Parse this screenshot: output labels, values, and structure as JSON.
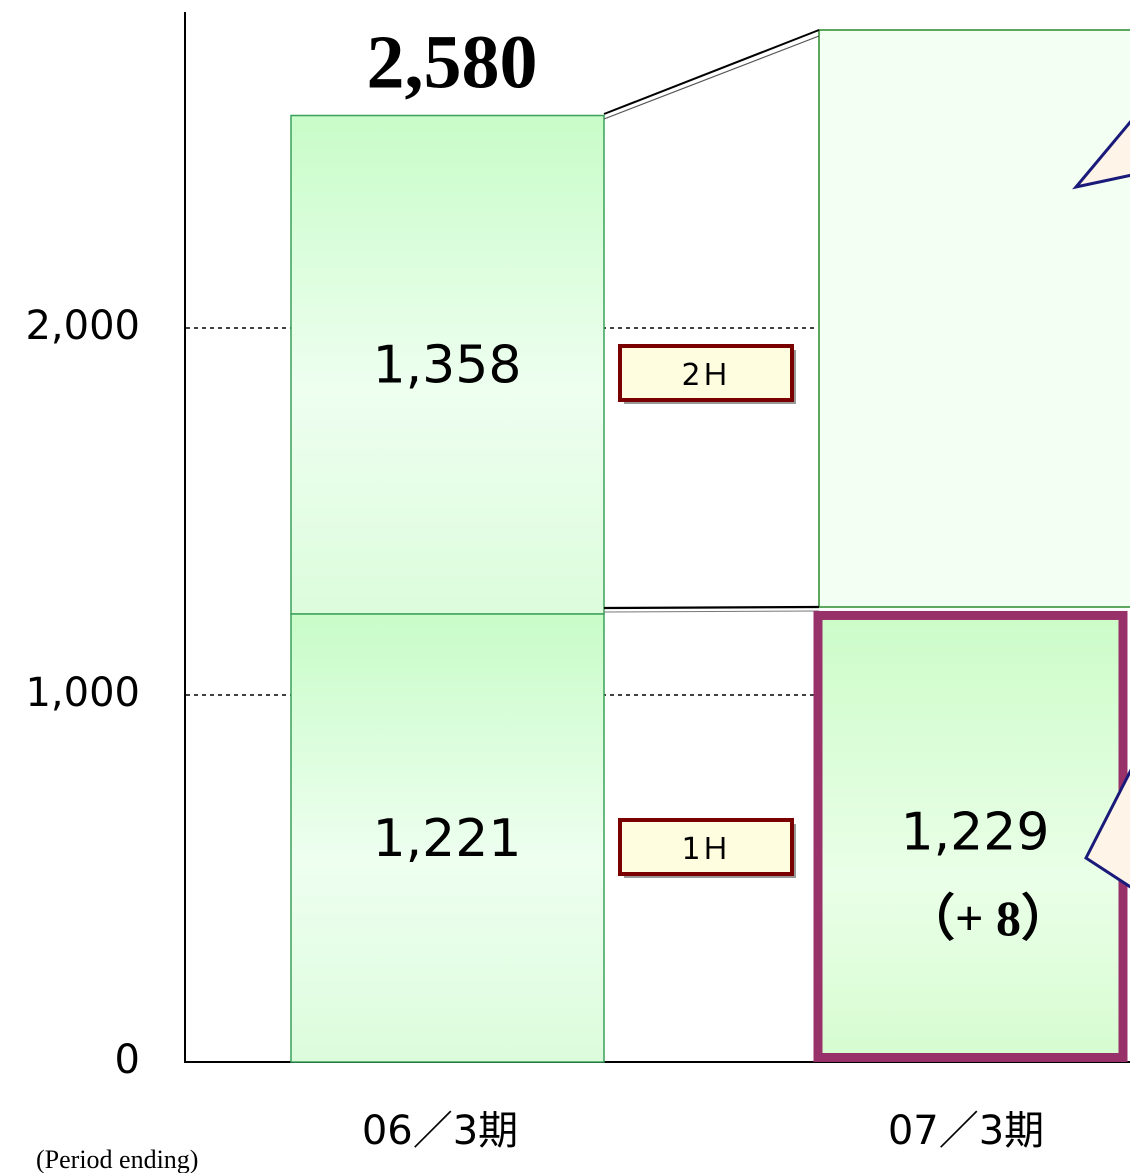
{
  "chart_data": {
    "type": "bar",
    "stacked": true,
    "categories": [
      "06／3期",
      "07／3期"
    ],
    "series": [
      {
        "name": "1Ｈ",
        "values": [
          1221,
          1229
        ]
      },
      {
        "name": "2Ｈ",
        "values": [
          1358,
          null
        ]
      }
    ],
    "totals": [
      "2,580",
      ""
    ],
    "segment_labels": {
      "first_half": [
        "1,221",
        "1,229"
      ],
      "second_half": [
        "1,358",
        ""
      ]
    },
    "change_label": "（+ 8）",
    "ylim": [
      0,
      2820
    ],
    "yticks": [
      0,
      1000,
      2000
    ],
    "ytick_labels": [
      "0",
      "1,000",
      "2,000"
    ],
    "xlabel": "(Period ending)",
    "grid": "dotted at 1,000 and 2,000",
    "legend": "inline labels between bars",
    "colors": {
      "bar_fill_top": "#c8fcc8",
      "bar_fill_mid": "#f0fff0",
      "bar_stroke": "#3aa05a",
      "highlight_border": "#98306a",
      "label_border": "#7a0000",
      "label_fill": "#fffde0"
    }
  }
}
